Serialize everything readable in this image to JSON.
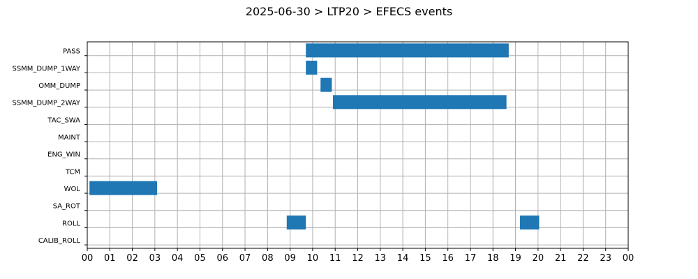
{
  "chart_data": {
    "type": "gantt",
    "title": "2025-06-30 > LTP20 > EFECS events",
    "xlabel": "",
    "ylabel": "",
    "x_unit": "hour of day",
    "xlim": [
      0,
      24
    ],
    "x_tick_labels": [
      "00",
      "01",
      "02",
      "03",
      "04",
      "05",
      "06",
      "07",
      "08",
      "09",
      "10",
      "11",
      "12",
      "13",
      "14",
      "15",
      "16",
      "17",
      "18",
      "19",
      "20",
      "21",
      "22",
      "23",
      "00"
    ],
    "grid": true,
    "bar_color": "#1f77b4",
    "categories": [
      "PASS",
      "SSMM_DUMP_1WAY",
      "OMM_DUMP",
      "SSMM_DUMP_2WAY",
      "TAC_SWA",
      "MAINT",
      "ENG_WIN",
      "TCM",
      "WOL",
      "SA_ROT",
      "ROLL",
      "CALIB_ROLL"
    ],
    "events": [
      {
        "category": "PASS",
        "start": 9.7,
        "end": 18.7
      },
      {
        "category": "SSMM_DUMP_1WAY",
        "start": 9.7,
        "end": 10.2
      },
      {
        "category": "OMM_DUMP",
        "start": 10.35,
        "end": 10.85
      },
      {
        "category": "SSMM_DUMP_2WAY",
        "start": 10.9,
        "end": 18.6
      },
      {
        "category": "WOL",
        "start": 0.1,
        "end": 3.1
      },
      {
        "category": "ROLL",
        "start": 8.85,
        "end": 9.7
      },
      {
        "category": "ROLL",
        "start": 19.2,
        "end": 20.05
      }
    ]
  }
}
